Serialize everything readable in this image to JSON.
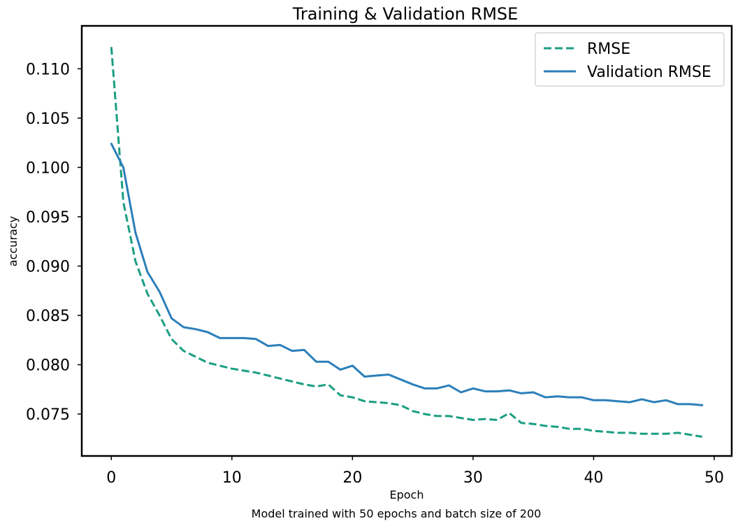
{
  "chart_data": {
    "type": "line",
    "title": "Training & Validation RMSE",
    "xlabel": "Epoch",
    "ylabel": "accuracy",
    "caption": "Model trained with 50 epochs and batch size of 200",
    "xlim": [
      -2.45,
      51.45
    ],
    "ylim": [
      0.07075,
      0.11435
    ],
    "xticks": [
      0,
      10,
      20,
      30,
      40,
      50
    ],
    "xtick_labels": [
      "0",
      "10",
      "20",
      "30",
      "40",
      "50"
    ],
    "yticks": [
      0.075,
      0.08,
      0.085,
      0.09,
      0.095,
      0.1,
      0.105,
      0.11
    ],
    "ytick_labels": [
      "0.075",
      "0.080",
      "0.085",
      "0.090",
      "0.095",
      "0.100",
      "0.105",
      "0.110"
    ],
    "grid": false,
    "legend_position": "top-right",
    "x": [
      0,
      1,
      2,
      3,
      4,
      5,
      6,
      7,
      8,
      9,
      10,
      11,
      12,
      13,
      14,
      15,
      16,
      17,
      18,
      19,
      20,
      21,
      22,
      23,
      24,
      25,
      26,
      27,
      28,
      29,
      30,
      31,
      32,
      33,
      34,
      35,
      36,
      37,
      38,
      39,
      40,
      41,
      42,
      43,
      44,
      45,
      46,
      47,
      48,
      49
    ],
    "series": [
      {
        "name": "RMSE",
        "color": "#1a9e82",
        "style": "dashed",
        "values": [
          0.1122,
          0.0965,
          0.0905,
          0.0872,
          0.085,
          0.0826,
          0.0814,
          0.0808,
          0.0802,
          0.0799,
          0.0796,
          0.0794,
          0.0792,
          0.0789,
          0.0786,
          0.0783,
          0.078,
          0.0778,
          0.078,
          0.0769,
          0.0767,
          0.0763,
          0.0762,
          0.0761,
          0.0759,
          0.0753,
          0.075,
          0.0748,
          0.0748,
          0.0746,
          0.0744,
          0.0745,
          0.0744,
          0.0751,
          0.0741,
          0.074,
          0.0738,
          0.0737,
          0.0735,
          0.0735,
          0.0733,
          0.0732,
          0.0731,
          0.0731,
          0.073,
          0.073,
          0.073,
          0.0731,
          0.0729,
          0.0727
        ]
      },
      {
        "name": "Validation RMSE",
        "color": "#2b7fba",
        "style": "solid",
        "values": [
          0.1024,
          0.1,
          0.0934,
          0.0894,
          0.0874,
          0.0847,
          0.0838,
          0.0836,
          0.0833,
          0.0827,
          0.0827,
          0.0827,
          0.0826,
          0.0819,
          0.082,
          0.0814,
          0.0815,
          0.0803,
          0.0803,
          0.0795,
          0.0799,
          0.0788,
          0.0789,
          0.079,
          0.0785,
          0.078,
          0.0776,
          0.0776,
          0.0779,
          0.0772,
          0.0776,
          0.0773,
          0.0773,
          0.0774,
          0.0771,
          0.0772,
          0.0767,
          0.0768,
          0.0767,
          0.0767,
          0.0764,
          0.0764,
          0.0763,
          0.0762,
          0.0765,
          0.0762,
          0.0764,
          0.076,
          0.076,
          0.0759
        ]
      }
    ]
  }
}
